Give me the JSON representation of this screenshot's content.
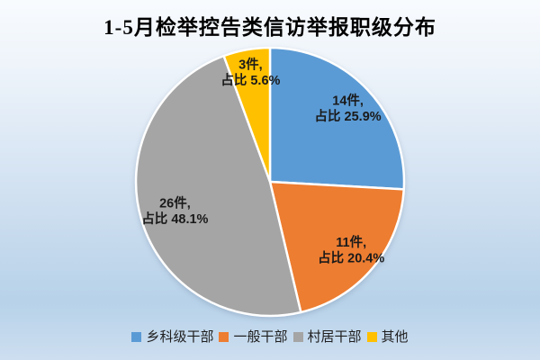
{
  "chart_data": {
    "type": "pie",
    "title": "1-5月检举控告类信访举报职级分布",
    "legend_position": "bottom",
    "start_angle_deg": 0,
    "direction": "clockwise",
    "unit": "件",
    "slices": [
      {
        "name": "乡科级干部",
        "value": 14,
        "percent": 25.9,
        "color": "#5B9BD5",
        "label_line1": "14件,",
        "label_line2": "占比 25.9%"
      },
      {
        "name": "一般干部",
        "value": 11,
        "percent": 20.4,
        "color": "#ED7D31",
        "label_line1": "11件,",
        "label_line2": "占比 20.4%"
      },
      {
        "name": "村居干部",
        "value": 26,
        "percent": 48.1,
        "color": "#A5A5A5",
        "label_line1": "26件,",
        "label_line2": "占比 48.1%"
      },
      {
        "name": "其他",
        "value": 3,
        "percent": 5.6,
        "color": "#FFC000",
        "label_line1": "3件,",
        "label_line2": "占比 5.6%"
      }
    ],
    "colors": {
      "slice_border": "#FFFFFF",
      "label_text": "#1A1A1A",
      "title_text": "#000000",
      "background_top": "#F8FBFE",
      "background_bottom": "#CDDEF0"
    }
  }
}
